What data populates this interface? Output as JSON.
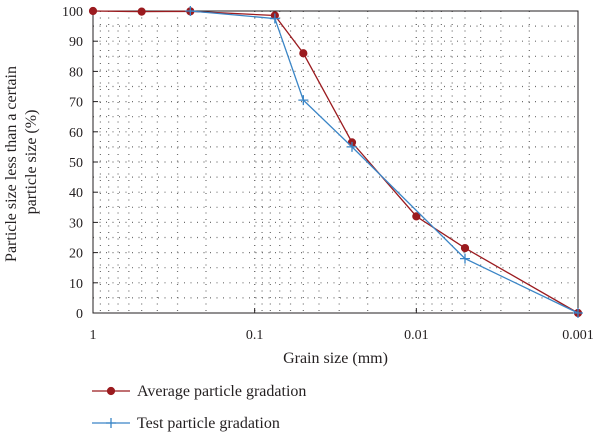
{
  "chart_data": {
    "type": "line",
    "xlabel": "Grain size (mm)",
    "ylabel_line1": "Particle size less than a certain",
    "ylabel_line2": "particle size (%)",
    "x_scale": "log-reversed",
    "xlim": [
      1,
      0.001
    ],
    "ylim": [
      0,
      100
    ],
    "x_ticks": [
      1,
      0.1,
      0.01,
      0.001
    ],
    "x_tick_labels": [
      "1",
      "0.1",
      "0.01",
      "0.001"
    ],
    "y_ticks": [
      0,
      10,
      20,
      30,
      40,
      50,
      60,
      70,
      80,
      90,
      100
    ],
    "grid": "dotted",
    "legend_position": "bottom",
    "series": [
      {
        "name": "Average particle gradation",
        "color": "#9b1b1f",
        "marker": "circle",
        "x": [
          1,
          0.5,
          0.25,
          0.075,
          0.05,
          0.025,
          0.01,
          0.005,
          0.001
        ],
        "y": [
          100,
          99.8,
          99.9,
          98.5,
          86,
          56.5,
          32,
          21.5,
          0
        ]
      },
      {
        "name": "Test particle gradation",
        "color": "#3a85c6",
        "marker": "plus",
        "x": [
          0.25,
          0.075,
          0.05,
          0.025,
          0.005,
          0.001
        ],
        "y": [
          100,
          97.5,
          70.5,
          55,
          18,
          0
        ]
      }
    ]
  }
}
